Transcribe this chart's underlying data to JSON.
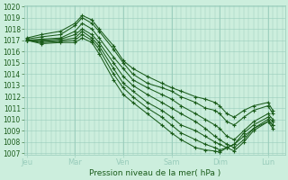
{
  "xlabel": "Pression niveau de la mer( hPa )",
  "ylim": [
    1007,
    1020
  ],
  "yticks": [
    1007,
    1008,
    1009,
    1010,
    1011,
    1012,
    1013,
    1014,
    1015,
    1016,
    1017,
    1018,
    1019,
    1020
  ],
  "xtick_labels": [
    "Jeu",
    "Mar",
    "Ven",
    "Sam",
    "Dim",
    "Lun"
  ],
  "day_x": [
    0,
    1,
    2,
    3,
    4,
    5
  ],
  "background_color": "#cceedd",
  "grid_color": "#99ccbb",
  "line_color": "#1a5c1a",
  "figsize": [
    3.2,
    2.0
  ],
  "dpi": 100,
  "series": [
    {
      "x": [
        0.0,
        0.3,
        0.7,
        1.0,
        1.15,
        1.35,
        1.5,
        1.8,
        2.0,
        2.2,
        2.5,
        2.8,
        3.0,
        3.2,
        3.5,
        3.7,
        3.9,
        4.0,
        4.15,
        4.3,
        4.5,
        4.7,
        5.0,
        5.1
      ],
      "y": [
        1017.2,
        1017.5,
        1017.8,
        1018.5,
        1019.2,
        1018.8,
        1018.0,
        1016.5,
        1015.2,
        1014.5,
        1013.8,
        1013.2,
        1012.8,
        1012.5,
        1012.0,
        1011.8,
        1011.5,
        1011.2,
        1010.5,
        1010.2,
        1010.8,
        1011.2,
        1011.5,
        1010.8
      ]
    },
    {
      "x": [
        0.0,
        0.3,
        0.7,
        1.0,
        1.15,
        1.35,
        1.5,
        1.8,
        2.0,
        2.2,
        2.5,
        2.8,
        3.0,
        3.2,
        3.5,
        3.7,
        3.9,
        4.0,
        4.15,
        4.3,
        4.5,
        4.7,
        5.0,
        5.1
      ],
      "y": [
        1017.1,
        1017.3,
        1017.5,
        1018.3,
        1019.0,
        1018.5,
        1017.8,
        1016.2,
        1015.0,
        1014.0,
        1013.2,
        1012.8,
        1012.5,
        1012.0,
        1011.5,
        1011.0,
        1010.8,
        1010.5,
        1009.8,
        1009.5,
        1010.2,
        1010.8,
        1011.2,
        1010.5
      ]
    },
    {
      "x": [
        0.0,
        0.3,
        0.7,
        1.0,
        1.15,
        1.35,
        1.5,
        1.8,
        2.0,
        2.2,
        2.5,
        2.8,
        3.0,
        3.2,
        3.5,
        3.7,
        3.9,
        4.0,
        4.15,
        4.3,
        4.5,
        4.7,
        5.0,
        5.1
      ],
      "y": [
        1017.0,
        1017.1,
        1017.2,
        1017.8,
        1018.5,
        1018.0,
        1017.2,
        1015.5,
        1014.5,
        1013.5,
        1012.8,
        1012.2,
        1011.8,
        1011.2,
        1010.5,
        1010.0,
        1009.5,
        1009.2,
        1008.5,
        1008.2,
        1009.0,
        1009.8,
        1010.5,
        1010.0
      ]
    },
    {
      "x": [
        0.0,
        0.3,
        0.7,
        1.0,
        1.15,
        1.35,
        1.5,
        1.8,
        2.0,
        2.2,
        2.5,
        2.8,
        3.0,
        3.2,
        3.5,
        3.7,
        3.9,
        4.0,
        4.15,
        4.3,
        4.5,
        4.7,
        5.0,
        5.1
      ],
      "y": [
        1017.0,
        1017.0,
        1017.1,
        1017.5,
        1018.0,
        1017.5,
        1016.8,
        1015.0,
        1013.8,
        1013.0,
        1012.2,
        1011.5,
        1011.0,
        1010.5,
        1009.8,
        1009.2,
        1008.5,
        1008.2,
        1007.8,
        1007.5,
        1008.2,
        1009.2,
        1010.0,
        1009.5
      ]
    },
    {
      "x": [
        0.0,
        0.3,
        0.7,
        1.0,
        1.15,
        1.35,
        1.5,
        1.8,
        2.0,
        2.2,
        2.5,
        2.8,
        3.0,
        3.2,
        3.5,
        3.7,
        3.9,
        4.0,
        4.15,
        4.3,
        4.5,
        4.7,
        5.0,
        5.1
      ],
      "y": [
        1017.0,
        1016.9,
        1017.0,
        1017.2,
        1017.8,
        1017.2,
        1016.5,
        1014.5,
        1013.2,
        1012.5,
        1011.5,
        1010.8,
        1010.2,
        1009.5,
        1009.0,
        1008.5,
        1008.0,
        1007.8,
        1007.5,
        1007.2,
        1008.0,
        1009.0,
        1009.8,
        1009.2
      ]
    },
    {
      "x": [
        0.0,
        0.3,
        0.7,
        1.0,
        1.15,
        1.35,
        1.5,
        1.8,
        2.0,
        2.2,
        2.5,
        2.8,
        3.0,
        3.2,
        3.5,
        3.7,
        3.9,
        4.0,
        4.15,
        4.3,
        4.5,
        4.7,
        5.0,
        5.1
      ],
      "y": [
        1017.0,
        1016.8,
        1016.9,
        1017.0,
        1017.5,
        1017.0,
        1016.2,
        1014.0,
        1012.8,
        1012.0,
        1011.0,
        1010.2,
        1009.5,
        1008.8,
        1008.2,
        1007.8,
        1007.5,
        1007.3,
        1007.5,
        1007.8,
        1008.8,
        1009.5,
        1010.2,
        1009.8
      ]
    },
    {
      "x": [
        0.0,
        0.3,
        0.7,
        1.0,
        1.15,
        1.35,
        1.5,
        1.8,
        2.0,
        2.2,
        2.5,
        2.8,
        3.0,
        3.2,
        3.5,
        3.7,
        3.9,
        4.0,
        4.15,
        4.3,
        4.5,
        4.7,
        5.0,
        5.1
      ],
      "y": [
        1017.0,
        1016.7,
        1016.8,
        1016.8,
        1017.2,
        1016.8,
        1015.8,
        1013.5,
        1012.2,
        1011.5,
        1010.5,
        1009.5,
        1008.8,
        1008.2,
        1007.5,
        1007.3,
        1007.2,
        1007.1,
        1007.5,
        1007.8,
        1008.5,
        1009.2,
        1009.8,
        1009.5
      ]
    }
  ]
}
